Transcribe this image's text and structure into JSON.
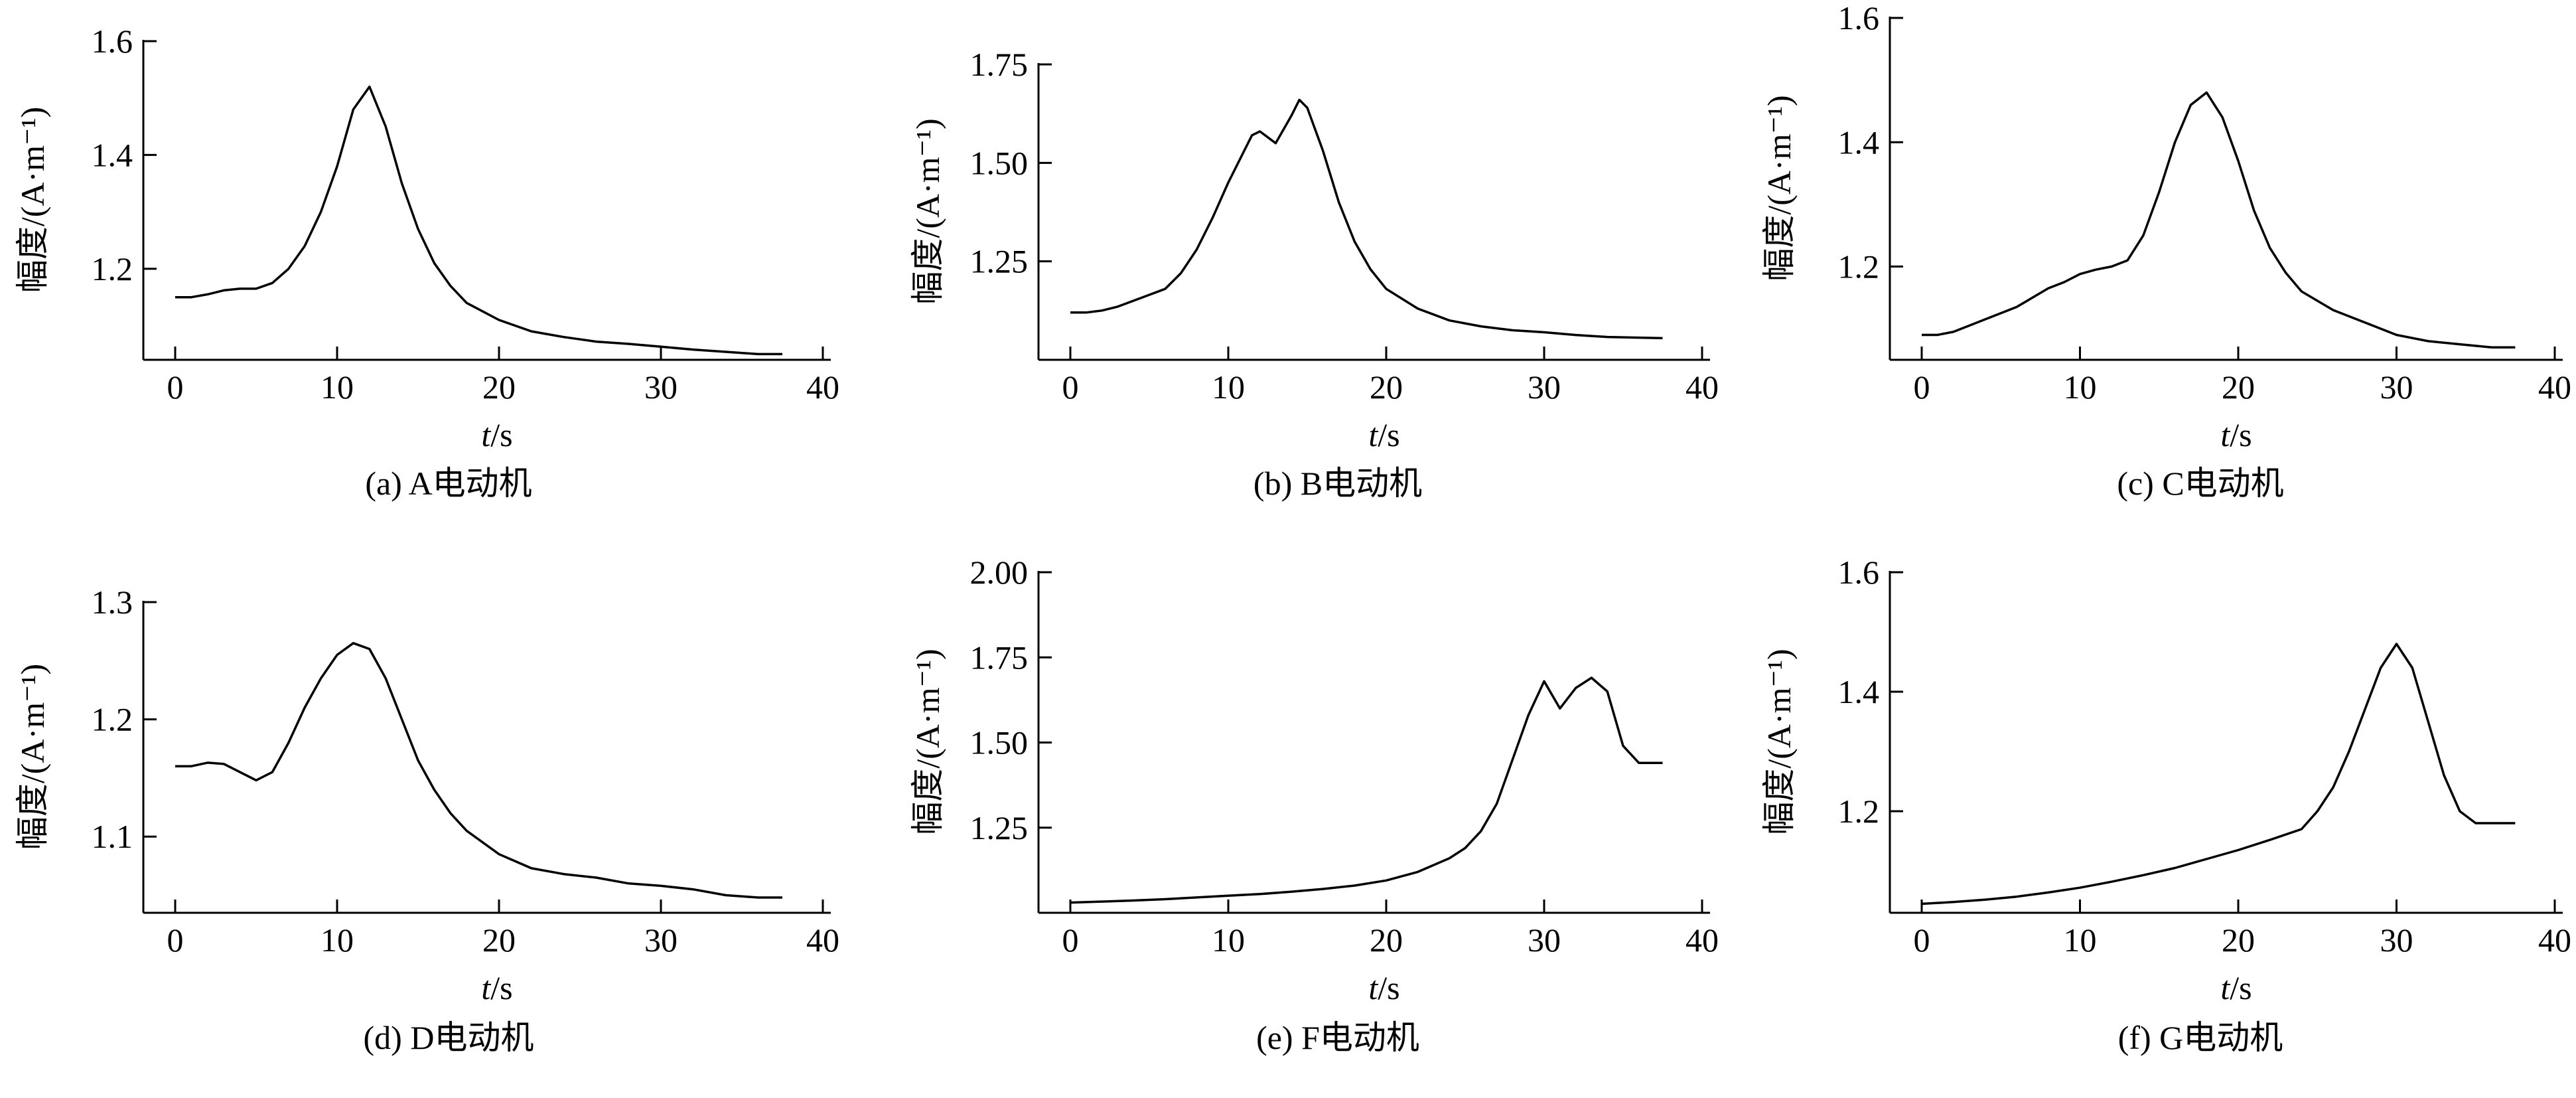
{
  "chart_data": [
    {
      "type": "line",
      "caption": "(a) A电动机",
      "ylabel": "幅度/(A·m⁻¹)",
      "xlabel": "t/s",
      "xlim": [
        0,
        40
      ],
      "ylim": [
        1.04,
        1.6
      ],
      "xticks": [
        "0",
        "10",
        "20",
        "30",
        "40"
      ],
      "yticks": [
        {
          "value": 1.2,
          "label": "1.2"
        },
        {
          "value": 1.4,
          "label": "1.4"
        },
        {
          "value": 1.6,
          "label": "1.6"
        }
      ],
      "x": [
        0,
        1,
        2,
        3,
        4,
        5,
        6,
        7,
        8,
        9,
        10,
        11,
        12,
        13,
        14,
        15,
        16,
        17,
        18,
        20,
        22,
        24,
        26,
        28,
        30,
        32,
        34,
        36,
        37.5
      ],
      "values": [
        1.15,
        1.15,
        1.155,
        1.162,
        1.165,
        1.165,
        1.175,
        1.2,
        1.24,
        1.3,
        1.38,
        1.48,
        1.52,
        1.45,
        1.35,
        1.27,
        1.21,
        1.17,
        1.14,
        1.11,
        1.09,
        1.08,
        1.072,
        1.068,
        1.063,
        1.058,
        1.054,
        1.05,
        1.05
      ]
    },
    {
      "type": "line",
      "caption": "(b) B电动机",
      "ylabel": "幅度/(A·m⁻¹)",
      "xlabel": "t/s",
      "xlim": [
        0,
        40
      ],
      "ylim": [
        1.0,
        1.75
      ],
      "xticks": [
        "0",
        "10",
        "20",
        "30",
        "40"
      ],
      "yticks": [
        {
          "value": 1.25,
          "label": "1.25"
        },
        {
          "value": 1.5,
          "label": "1.50"
        },
        {
          "value": 1.75,
          "label": "1.75"
        }
      ],
      "x": [
        0,
        1,
        2,
        3,
        4,
        5,
        6,
        7,
        8,
        9,
        10,
        11,
        11.5,
        12,
        13,
        14,
        14.5,
        15,
        16,
        17,
        18,
        19,
        20,
        22,
        24,
        26,
        28,
        30,
        32,
        34,
        37.5
      ],
      "values": [
        1.12,
        1.12,
        1.125,
        1.135,
        1.15,
        1.165,
        1.18,
        1.22,
        1.28,
        1.36,
        1.45,
        1.53,
        1.57,
        1.58,
        1.55,
        1.62,
        1.66,
        1.64,
        1.53,
        1.4,
        1.3,
        1.23,
        1.18,
        1.13,
        1.1,
        1.085,
        1.075,
        1.07,
        1.063,
        1.058,
        1.055
      ]
    },
    {
      "type": "line",
      "caption": "(c) C电动机",
      "ylabel": "幅度/(A·m⁻¹)",
      "xlabel": "t/s",
      "xlim": [
        0,
        40
      ],
      "ylim": [
        1.05,
        1.6
      ],
      "xticks": [
        "0",
        "10",
        "20",
        "30",
        "40"
      ],
      "yticks": [
        {
          "value": 1.2,
          "label": "1.2"
        },
        {
          "value": 1.4,
          "label": "1.4"
        },
        {
          "value": 1.6,
          "label": "1.6"
        }
      ],
      "x": [
        0,
        1,
        2,
        3,
        4,
        5,
        6,
        7,
        8,
        9,
        10,
        11,
        12,
        13,
        14,
        15,
        16,
        17,
        18,
        19,
        20,
        21,
        22,
        23,
        24,
        26,
        28,
        30,
        32,
        34,
        36,
        37.5
      ],
      "values": [
        1.09,
        1.09,
        1.095,
        1.105,
        1.115,
        1.125,
        1.135,
        1.15,
        1.165,
        1.175,
        1.188,
        1.195,
        1.2,
        1.21,
        1.25,
        1.32,
        1.4,
        1.46,
        1.48,
        1.44,
        1.37,
        1.29,
        1.23,
        1.19,
        1.16,
        1.13,
        1.11,
        1.09,
        1.08,
        1.075,
        1.07,
        1.07
      ]
    },
    {
      "type": "line",
      "caption": "(d) D电动机",
      "ylabel": "幅度/(A·m⁻¹)",
      "xlabel": "t/s",
      "xlim": [
        0,
        40
      ],
      "ylim": [
        1.035,
        1.3
      ],
      "xticks": [
        "0",
        "10",
        "20",
        "30",
        "40"
      ],
      "yticks": [
        {
          "value": 1.1,
          "label": "1.1"
        },
        {
          "value": 1.2,
          "label": "1.2"
        },
        {
          "value": 1.3,
          "label": "1.3"
        }
      ],
      "x": [
        0,
        1,
        2,
        3,
        4,
        5,
        6,
        7,
        8,
        9,
        10,
        11,
        12,
        13,
        14,
        15,
        16,
        17,
        18,
        20,
        22,
        24,
        26,
        28,
        30,
        32,
        34,
        36,
        37.5
      ],
      "values": [
        1.16,
        1.16,
        1.163,
        1.162,
        1.155,
        1.148,
        1.155,
        1.18,
        1.21,
        1.235,
        1.255,
        1.265,
        1.26,
        1.235,
        1.2,
        1.165,
        1.14,
        1.12,
        1.105,
        1.085,
        1.073,
        1.068,
        1.065,
        1.06,
        1.058,
        1.055,
        1.05,
        1.048,
        1.048
      ]
    },
    {
      "type": "line",
      "caption": "(e) F电动机",
      "ylabel": "幅度/(A·m⁻¹)",
      "xlabel": "t/s",
      "xlim": [
        0,
        40
      ],
      "ylim": [
        1.0,
        2.0
      ],
      "xticks": [
        "0",
        "10",
        "20",
        "30",
        "40"
      ],
      "yticks": [
        {
          "value": 1.25,
          "label": "1.25"
        },
        {
          "value": 1.5,
          "label": "1.50"
        },
        {
          "value": 1.75,
          "label": "1.75"
        },
        {
          "value": 2.0,
          "label": "2.00"
        }
      ],
      "x": [
        0,
        2,
        4,
        6,
        8,
        10,
        12,
        14,
        16,
        18,
        20,
        22,
        24,
        25,
        26,
        27,
        28,
        29,
        30,
        31,
        32,
        33,
        34,
        35,
        36,
        37.5
      ],
      "values": [
        1.03,
        1.033,
        1.036,
        1.04,
        1.045,
        1.05,
        1.055,
        1.062,
        1.07,
        1.08,
        1.095,
        1.12,
        1.16,
        1.19,
        1.24,
        1.32,
        1.45,
        1.58,
        1.68,
        1.6,
        1.66,
        1.69,
        1.65,
        1.49,
        1.44,
        1.44
      ]
    },
    {
      "type": "line",
      "caption": "(f) G电动机",
      "ylabel": "幅度/(A·m⁻¹)",
      "xlabel": "t/s",
      "xlim": [
        0,
        40
      ],
      "ylim": [
        1.03,
        1.6
      ],
      "xticks": [
        "0",
        "10",
        "20",
        "30",
        "40"
      ],
      "yticks": [
        {
          "value": 1.2,
          "label": "1.2"
        },
        {
          "value": 1.4,
          "label": "1.4"
        },
        {
          "value": 1.6,
          "label": "1.6"
        }
      ],
      "x": [
        0,
        2,
        4,
        6,
        8,
        10,
        12,
        14,
        16,
        18,
        20,
        22,
        24,
        25,
        26,
        27,
        28,
        29,
        30,
        31,
        32,
        33,
        34,
        35,
        36,
        37.5
      ],
      "values": [
        1.045,
        1.048,
        1.052,
        1.057,
        1.064,
        1.072,
        1.082,
        1.093,
        1.105,
        1.12,
        1.135,
        1.152,
        1.17,
        1.2,
        1.24,
        1.3,
        1.37,
        1.44,
        1.48,
        1.44,
        1.35,
        1.26,
        1.2,
        1.18,
        1.18,
        1.18
      ]
    }
  ]
}
